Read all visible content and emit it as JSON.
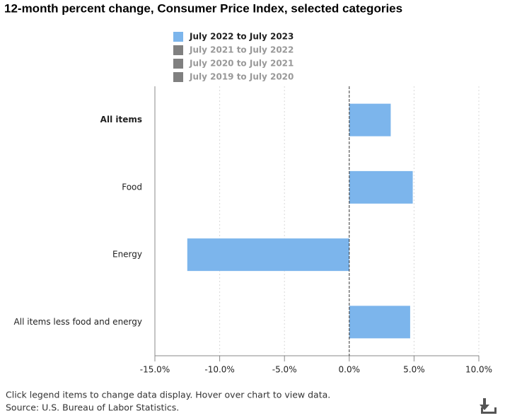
{
  "chart_data": {
    "type": "hbar",
    "title": "12-month percent change, Consumer Price Index, selected categories",
    "categories": [
      "All items",
      "Food",
      "Energy",
      "All items less food and energy"
    ],
    "series": [
      {
        "name": "July 2022 to July 2023",
        "color": "#7cb5ec",
        "visible": true,
        "values": [
          3.2,
          4.9,
          -12.5,
          4.7
        ]
      },
      {
        "name": "July 2021 to July 2022",
        "color": "#808080",
        "visible": false
      },
      {
        "name": "July 2020 to July 2021",
        "color": "#808080",
        "visible": false
      },
      {
        "name": "July 2019 to July 2020",
        "color": "#808080",
        "visible": false
      }
    ],
    "xlim": [
      -15,
      10
    ],
    "xticks": [
      {
        "value": -15,
        "label": "-15.0%"
      },
      {
        "value": -10,
        "label": "-10.0%"
      },
      {
        "value": -5,
        "label": "-5.0%"
      },
      {
        "value": 0,
        "label": "0.0%"
      },
      {
        "value": 5,
        "label": "5.0%"
      },
      {
        "value": 10,
        "label": "10.0%"
      }
    ],
    "grid": true,
    "note": "Click legend items to change data display. Hover over chart to view data.",
    "source": "Source: U.S. Bureau of Labor Statistics."
  }
}
